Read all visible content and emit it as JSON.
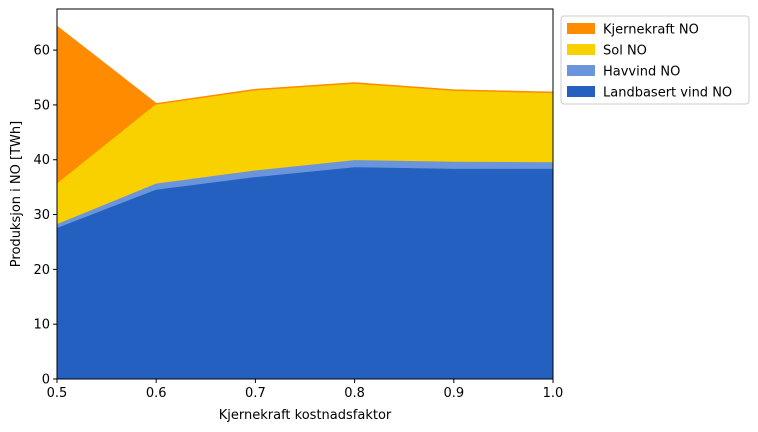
{
  "chart_data": {
    "type": "area",
    "stacked": true,
    "x": [
      0.5,
      0.6,
      0.7,
      0.8,
      0.9,
      1.0
    ],
    "xlabel": "Kjernekraft kostnadsfaktor",
    "ylabel": "Produksjon i NO [TWh]",
    "xlim": [
      0.5,
      1.0
    ],
    "ylim": [
      0,
      67.5
    ],
    "xticks": [
      "0.5",
      "0.6",
      "0.7",
      "0.8",
      "0.9",
      "1.0"
    ],
    "yticks": [
      "0",
      "10",
      "20",
      "30",
      "40",
      "50",
      "60"
    ],
    "xtick_values": [
      0.5,
      0.6,
      0.7,
      0.8,
      0.9,
      1.0
    ],
    "ytick_values": [
      0,
      10,
      20,
      30,
      40,
      50,
      60
    ],
    "grid": false,
    "legend_position": "outside-top-right",
    "series": [
      {
        "name": "Landbasert vind NO",
        "color": "#2460bf",
        "values": [
          27.4,
          34.4,
          36.7,
          38.5,
          38.2,
          38.2
        ]
      },
      {
        "name": "Havvind NO",
        "color": "#6a95dd",
        "values": [
          0.7,
          1.1,
          1.2,
          1.3,
          1.3,
          1.2
        ]
      },
      {
        "name": "Sol NO",
        "color": "#f9d000",
        "values": [
          7.4,
          14.5,
          14.7,
          14.0,
          13.0,
          12.7
        ]
      },
      {
        "name": "Kjernekraft NO",
        "color": "#ff8c00",
        "values": [
          28.8,
          0.2,
          0.2,
          0.2,
          0.2,
          0.2
        ]
      }
    ]
  }
}
